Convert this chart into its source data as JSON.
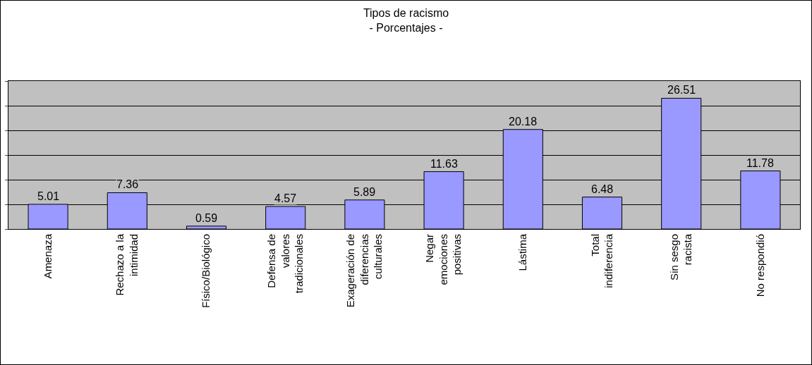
{
  "chart_data": {
    "type": "bar",
    "title": "Tipos de racismo",
    "subtitle": "- Porcentajes -",
    "categories": [
      "Amenaza",
      "Rechazo a la\nintimidad",
      "Físico/Biológico",
      "Defensa de\nvalores\ntradicionales",
      "Exageración de\ndiferencias\nculturales",
      "Negar\nemociones\npositivas",
      "Lástima",
      "Total\nindiferencia",
      "Sin sesgo\nracista",
      "No respondió"
    ],
    "values": [
      5.01,
      7.36,
      0.59,
      4.57,
      5.89,
      11.63,
      20.18,
      6.48,
      26.51,
      11.78
    ],
    "color": "#9999ff",
    "data_labels": true,
    "grid": "y",
    "legend": false,
    "tick_labels": "x",
    "ylim": [
      0,
      30
    ],
    "yticks": [
      {
        "value": 0,
        "label": null
      },
      {
        "value": 5,
        "label": null
      },
      {
        "value": 10,
        "label": null
      },
      {
        "value": 15,
        "label": null
      },
      {
        "value": 20,
        "label": null
      },
      {
        "value": 25,
        "label": null
      },
      {
        "value": 30,
        "label": null
      }
    ]
  }
}
